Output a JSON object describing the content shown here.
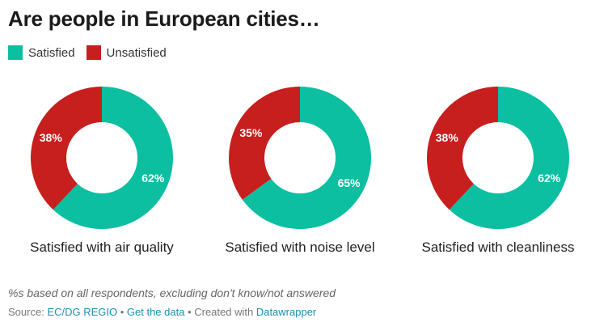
{
  "title": "Are people in European cities…",
  "legend": [
    {
      "label": "Satisfied",
      "color": "#0bbfa0"
    },
    {
      "label": "Unsatisfied",
      "color": "#c71e1e"
    }
  ],
  "chart_data": [
    {
      "type": "pie",
      "label": "Satisfied with air quality",
      "slices": [
        {
          "name": "Satisfied",
          "value": 62,
          "label": "62%",
          "color": "#0bbfa0"
        },
        {
          "name": "Unsatisfied",
          "value": 38,
          "label": "38%",
          "color": "#c71e1e"
        }
      ]
    },
    {
      "type": "pie",
      "label": "Satisfied with noise level",
      "slices": [
        {
          "name": "Satisfied",
          "value": 65,
          "label": "65%",
          "color": "#0bbfa0"
        },
        {
          "name": "Unsatisfied",
          "value": 35,
          "label": "35%",
          "color": "#c71e1e"
        }
      ]
    },
    {
      "type": "pie",
      "label": "Satisfied with cleanliness",
      "slices": [
        {
          "name": "Satisfied",
          "value": 62,
          "label": "62%",
          "color": "#0bbfa0"
        },
        {
          "name": "Unsatisfied",
          "value": 38,
          "label": "38%",
          "color": "#c71e1e"
        }
      ]
    }
  ],
  "note": "%s based on all respondents, excluding don't know/not answered",
  "footer": {
    "source_prefix": "Source: ",
    "source_link": "EC/DG REGIO",
    "sep1": " • ",
    "data_link": "Get the data",
    "sep2": " • Created with ",
    "tool_link": "Datawrapper"
  }
}
